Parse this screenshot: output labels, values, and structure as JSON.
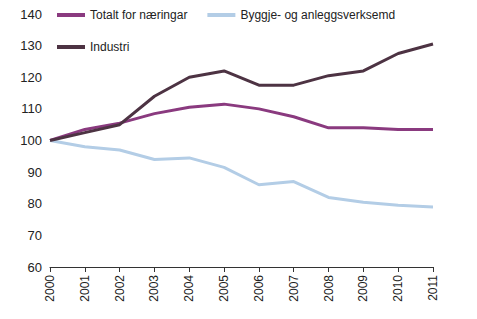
{
  "chart_data": {
    "type": "line",
    "categories": [
      "2000",
      "2001",
      "2002",
      "2003",
      "2004",
      "2005",
      "2006",
      "2007",
      "2008",
      "2009",
      "2010",
      "2011"
    ],
    "series": [
      {
        "name": "Totalt for næringar",
        "color": "#8a3a7f",
        "values": [
          100,
          103.5,
          105.5,
          108.5,
          110.5,
          111.5,
          110,
          107.5,
          104,
          104,
          103.5,
          103.5
        ]
      },
      {
        "name": "Byggje- og anleggsverksemd",
        "color": "#b3cde6",
        "values": [
          100,
          98,
          97,
          94,
          94.5,
          91.5,
          86,
          87,
          82,
          80.5,
          79.5,
          79
        ]
      },
      {
        "name": "Industri",
        "color": "#4d3343",
        "values": [
          100,
          102.5,
          105,
          114,
          120,
          122,
          117.5,
          117.5,
          120.5,
          122,
          127.5,
          130.5
        ]
      }
    ],
    "ylim": [
      60,
      140
    ],
    "yticks": [
      60,
      70,
      80,
      90,
      100,
      110,
      120,
      130,
      140
    ],
    "grid": false,
    "legend": "top"
  }
}
